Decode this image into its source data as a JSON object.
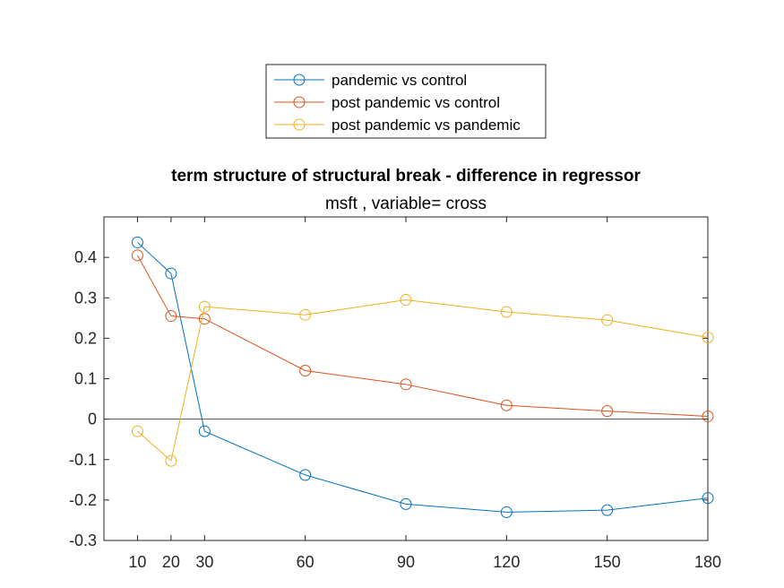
{
  "chart_data": {
    "type": "line",
    "title": "term structure of structural break - difference in regressor",
    "subtitle": "msft  , variable= cross",
    "xlabel": "",
    "ylabel": "",
    "x": [
      10,
      20,
      30,
      60,
      90,
      120,
      150,
      180
    ],
    "xlim": [
      0,
      180
    ],
    "ylim": [
      -0.3,
      0.5
    ],
    "xticks": [
      10,
      20,
      30,
      60,
      90,
      120,
      150,
      180
    ],
    "yticks": [
      -0.3,
      -0.2,
      -0.1,
      0,
      0.1,
      0.2,
      0.3,
      0.4
    ],
    "xtick_labels": [
      "10",
      "20",
      "30",
      "60",
      "90",
      "120",
      "150",
      "180"
    ],
    "ytick_labels": [
      "-0.3",
      "-0.2",
      "-0.1",
      "0",
      "0.1",
      "0.2",
      "0.3",
      "0.4"
    ],
    "zero_line": true,
    "grid": false,
    "legend_placement": "top-center (outside)",
    "marker": "open-circle",
    "series": [
      {
        "name": "pandemic vs control",
        "color": "#0072BD",
        "values": [
          0.437,
          0.36,
          -0.03,
          -0.138,
          -0.21,
          -0.23,
          -0.225,
          -0.195
        ]
      },
      {
        "name": "post pandemic vs control",
        "color": "#D95319",
        "values": [
          0.405,
          0.255,
          0.248,
          0.12,
          0.086,
          0.034,
          0.02,
          0.007
        ]
      },
      {
        "name": "post pandemic vs pandemic",
        "color": "#EDB120",
        "values": [
          -0.03,
          -0.103,
          0.278,
          0.258,
          0.295,
          0.265,
          0.245,
          0.202
        ]
      }
    ]
  }
}
